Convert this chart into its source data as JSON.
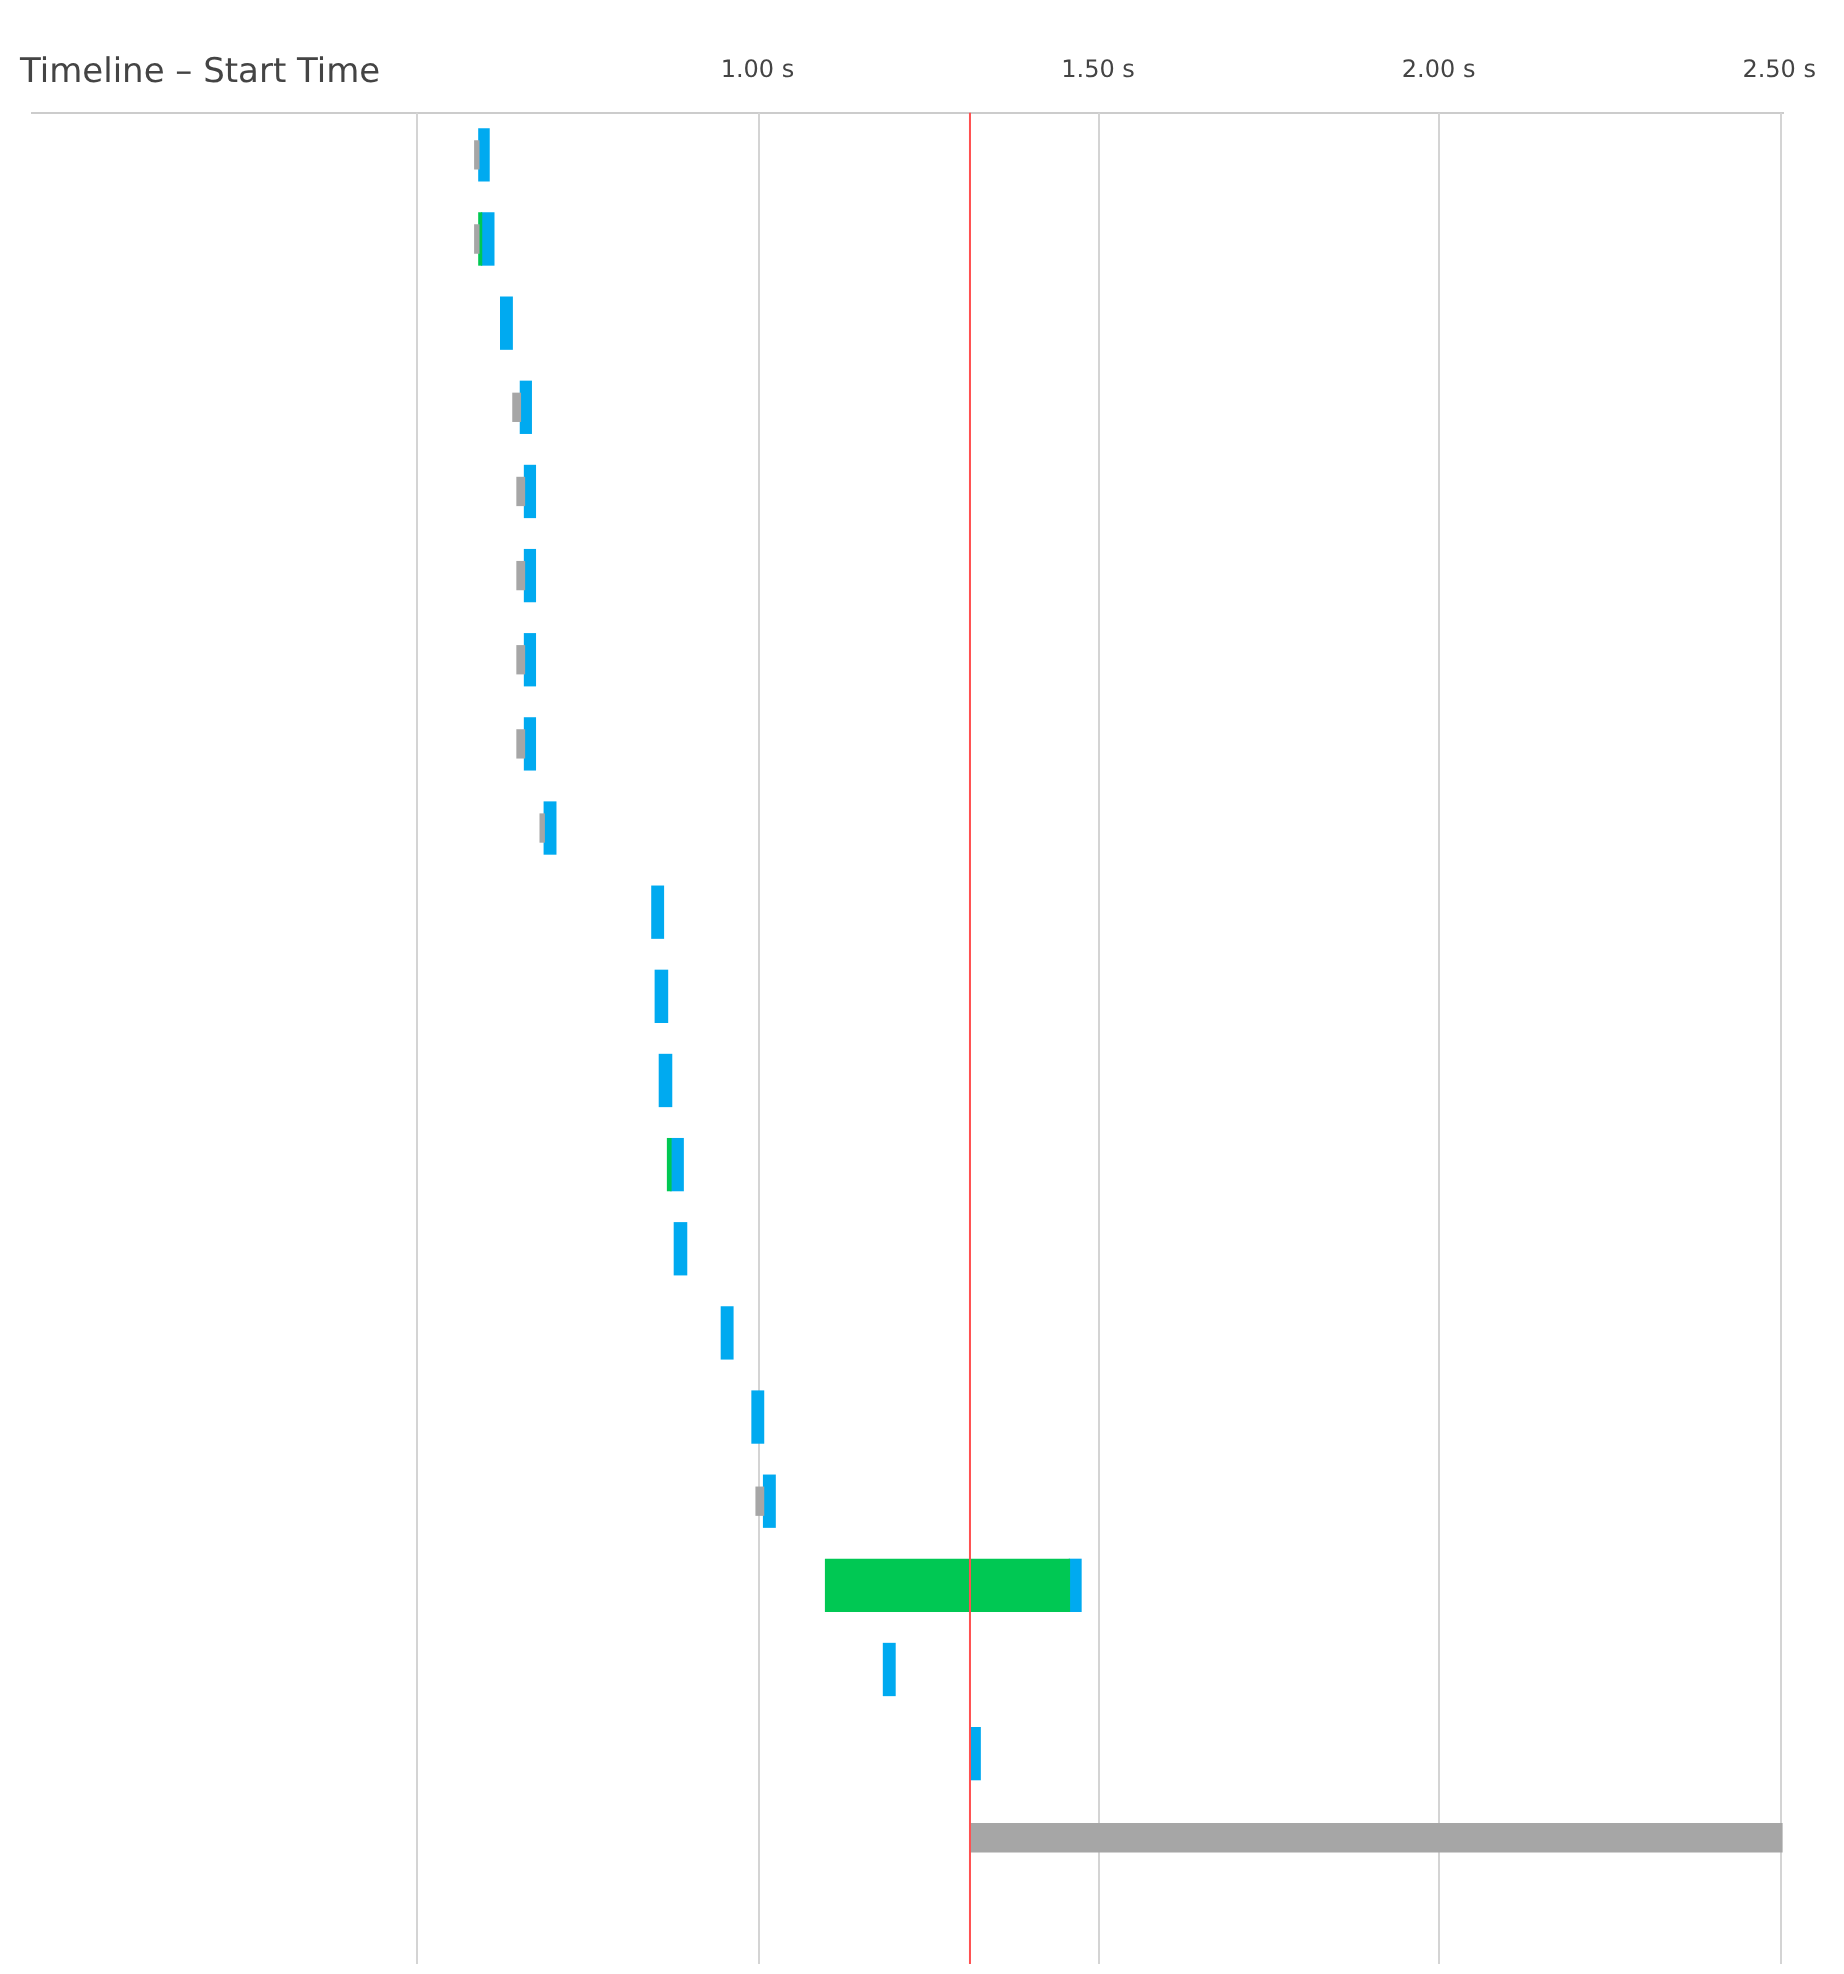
{
  "chart_data": {
    "type": "bar",
    "title": "Timeline – Start Time",
    "orientation": "horizontal",
    "grid": "x",
    "legend": false,
    "categories": [
      null,
      null,
      null,
      null,
      null,
      null,
      null,
      null,
      null,
      null,
      null,
      null,
      null,
      null,
      null,
      null,
      null,
      null,
      null,
      null,
      null,
      null
    ],
    "series": [
      {
        "color": "#a6a6a6",
        "base": [
          0.585,
          0.585,
          null,
          0.641,
          0.647,
          0.647,
          0.647,
          0.647,
          0.681,
          null,
          null,
          null,
          null,
          null,
          null,
          null,
          0.998,
          null,
          null,
          null,
          1.312,
          null
        ],
        "values": [
          0.006,
          0.006,
          null,
          0.011,
          0.011,
          0.011,
          0.011,
          0.011,
          0.006,
          null,
          null,
          null,
          null,
          null,
          null,
          null,
          0.011,
          null,
          null,
          null,
          1.193,
          null
        ]
      },
      {
        "color": "#00c853",
        "base": [
          null,
          0.591,
          null,
          null,
          null,
          null,
          null,
          null,
          null,
          null,
          null,
          null,
          0.868,
          null,
          null,
          null,
          null,
          1.1,
          null,
          null,
          null,
          null
        ],
        "values": [
          null,
          0.004,
          null,
          null,
          null,
          null,
          null,
          null,
          null,
          null,
          null,
          null,
          0.005,
          null,
          null,
          null,
          null,
          0.358,
          null,
          null,
          null,
          null
        ]
      },
      {
        "color": "#00aaf0",
        "base": [
          0.591,
          0.595,
          0.623,
          0.652,
          0.658,
          0.658,
          0.658,
          0.658,
          0.687,
          0.845,
          0.85,
          0.856,
          0.873,
          0.878,
          0.947,
          0.992,
          1.009,
          1.458,
          1.185,
          1.312,
          null,
          null
        ],
        "values": [
          0.015,
          0.018,
          0.017,
          0.016,
          0.016,
          0.016,
          0.016,
          0.016,
          0.017,
          0.017,
          0.018,
          0.018,
          0.018,
          0.018,
          0.017,
          0.017,
          0.017,
          0.017,
          0.017,
          0.015,
          null,
          null
        ]
      }
    ],
    "xlim": [
      -0.065,
      2.505
    ],
    "xticks": [
      {
        "value": 0.5,
        "label": null
      },
      {
        "value": 1,
        "label": "1.00 s"
      },
      {
        "value": 1.5,
        "label": "1.50 s"
      },
      {
        "value": 2,
        "label": "2.00 s"
      },
      {
        "value": 2.5,
        "label": "2.50 s"
      }
    ],
    "ref_lines": [
      {
        "axis": "x",
        "value": 1.312,
        "color": "#ff5050"
      }
    ]
  }
}
